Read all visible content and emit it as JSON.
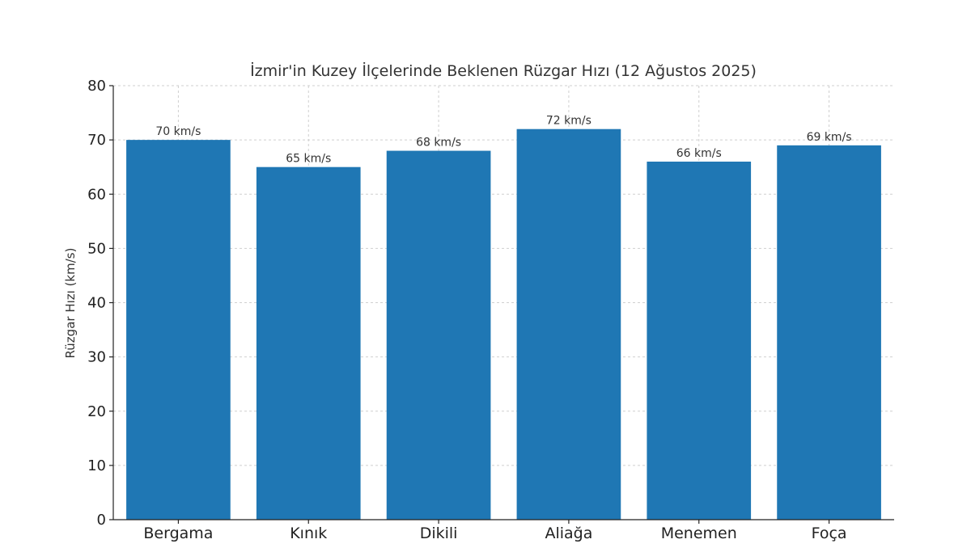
{
  "chart_data": {
    "type": "bar",
    "title": "İzmir'in Kuzey İlçelerinde Beklenen Rüzgar Hızı (12 Ağustos 2025)",
    "xlabel": "",
    "ylabel": "Rüzgar Hızı (km/s)",
    "categories": [
      "Bergama",
      "Kınık",
      "Dikili",
      "Aliağa",
      "Menemen",
      "Foça"
    ],
    "values": [
      70,
      65,
      68,
      72,
      66,
      69
    ],
    "value_labels": [
      "70 km/s",
      "65 km/s",
      "68 km/s",
      "72 km/s",
      "66 km/s",
      "69 km/s"
    ],
    "ylim": [
      0,
      80
    ],
    "yticks": [
      0,
      10,
      20,
      30,
      40,
      50,
      60,
      70,
      80
    ],
    "grid": true,
    "bar_color": "#1f77b4"
  }
}
